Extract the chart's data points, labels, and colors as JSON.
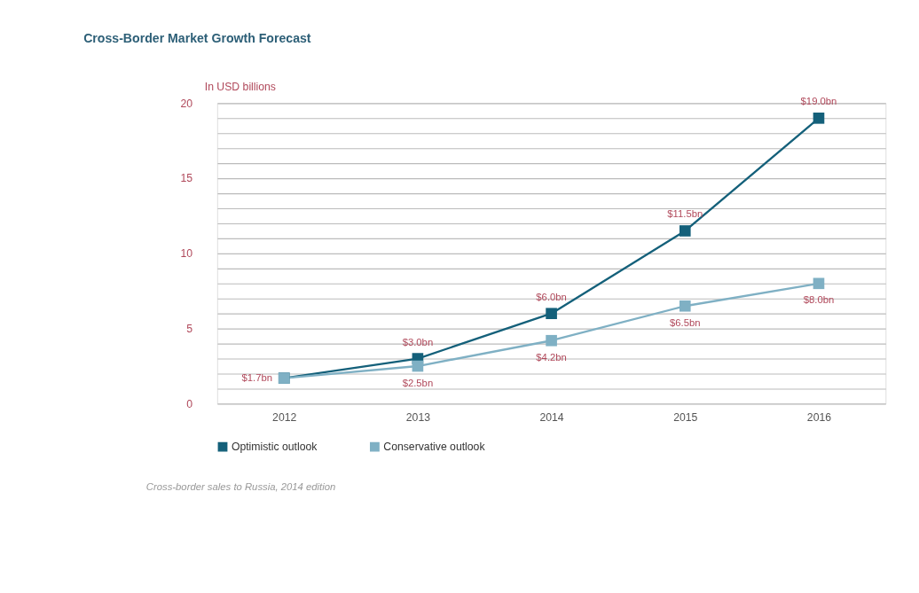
{
  "chart_data": {
    "type": "line",
    "title": "Cross-Border Market Growth Forecast",
    "ylabel": "In USD billions",
    "categories": [
      "2012",
      "2013",
      "2014",
      "2015",
      "2016"
    ],
    "series": [
      {
        "name": "Optimistic outlook",
        "color": "#14607a",
        "values": [
          1.7,
          3.0,
          6.0,
          11.5,
          19.0
        ],
        "value_labels": [
          "$1.7bn",
          "$3.0bn",
          "$6.0bn",
          "$11.5bn",
          "$19.0bn"
        ]
      },
      {
        "name": "Conservative outlook",
        "color": "#7fb0c4",
        "values": [
          1.7,
          2.5,
          4.2,
          6.5,
          8.0
        ],
        "value_labels": [
          null,
          "$2.5bn",
          "$4.2bn",
          "$6.5bn",
          "$8.0bn"
        ]
      }
    ],
    "ylim": [
      0,
      20
    ],
    "yticks": [
      0,
      {
        "value": 1,
        "label": null
      },
      {
        "value": 2,
        "label": null
      },
      {
        "value": 3,
        "label": null
      },
      {
        "value": 4,
        "label": null
      },
      5,
      {
        "value": 6,
        "label": null
      },
      {
        "value": 7,
        "label": null
      },
      {
        "value": 8,
        "label": null
      },
      {
        "value": 9,
        "label": null
      },
      10,
      {
        "value": 11,
        "label": null
      },
      {
        "value": 12,
        "label": null
      },
      {
        "value": 13,
        "label": null
      },
      {
        "value": 14,
        "label": null
      },
      15,
      {
        "value": 16,
        "label": null
      },
      {
        "value": 17,
        "label": null
      },
      {
        "value": 18,
        "label": null
      },
      {
        "value": 19,
        "label": null
      },
      20
    ],
    "grid": "y",
    "legend": "bottom left",
    "marker": "square",
    "line_style": "solid",
    "annotations": [
      "Cross-border sales to Russia, 2014 edition"
    ]
  }
}
